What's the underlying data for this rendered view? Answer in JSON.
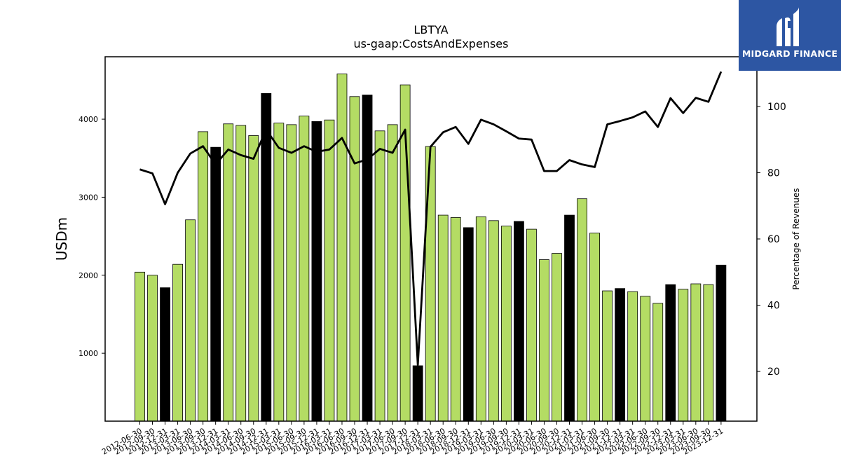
{
  "logo": {
    "text": "MIDGARD FINANCE",
    "icon": "midgard-m-logo-icon",
    "background": "#2d56a3"
  },
  "colors": {
    "bar_regular": "#b4dc64",
    "bar_q4": "#000000",
    "line": "#000000"
  },
  "chart_data": {
    "type": "bar",
    "title": "LBTYA",
    "subtitle": "us-gaap:CostsAndExpenses",
    "ylabel": "USDm",
    "ylabel_right": "Percentage of Revenues",
    "ylim": [
      130,
      4800
    ],
    "ylim_right": [
      5,
      115
    ],
    "yticks": [
      1000,
      2000,
      3000,
      4000
    ],
    "yticks_right": [
      20,
      40,
      60,
      80,
      100
    ],
    "grid": false,
    "categories": [
      "2012-06-30",
      "2012-09-30",
      "2012-12-31",
      "2013-03-31",
      "2013-06-30",
      "2013-09-30",
      "2013-12-31",
      "2014-03-31",
      "2014-06-30",
      "2014-09-30",
      "2014-12-31",
      "2015-03-31",
      "2015-06-30",
      "2015-09-30",
      "2015-12-31",
      "2016-03-31",
      "2016-06-30",
      "2016-09-30",
      "2016-12-31",
      "2017-03-31",
      "2017-06-30",
      "2017-09-30",
      "2017-12-31",
      "2018-03-31",
      "2018-06-30",
      "2018-09-30",
      "2018-12-31",
      "2019-03-31",
      "2019-06-30",
      "2019-09-30",
      "2019-12-31",
      "2020-03-31",
      "2020-06-30",
      "2020-09-30",
      "2020-12-31",
      "2021-03-31",
      "2021-06-30",
      "2021-09-30",
      "2021-12-31",
      "2022-03-31",
      "2022-06-30",
      "2022-09-30",
      "2022-12-31",
      "2023-03-31",
      "2023-06-30",
      "2023-09-30",
      "2023-12-31"
    ],
    "series": [
      {
        "type": "bar",
        "values": [
          2040,
          2000,
          1840,
          2140,
          2710,
          3840,
          3640,
          3940,
          3920,
          3790,
          4330,
          3950,
          3930,
          4040,
          3970,
          3990,
          4580,
          4290,
          4310,
          3850,
          3930,
          4440,
          840,
          3650,
          2770,
          2740,
          2610,
          2750,
          2700,
          2630,
          2690,
          2590,
          2200,
          2280,
          2770,
          2980,
          2540,
          1800,
          1830,
          1790,
          1730,
          1640,
          1880,
          1820,
          1890,
          1880,
          2130
        ],
        "highlight_categories": [
          "2012-12-31",
          "2013-12-31",
          "2014-12-31",
          "2015-12-31",
          "2016-12-31",
          "2017-12-31",
          "2018-12-31",
          "2019-12-31",
          "2020-12-31",
          "2021-12-31",
          "2022-12-31",
          "2023-12-31"
        ]
      },
      {
        "type": "line",
        "axis": "right",
        "values": [
          81,
          79.8,
          70.5,
          80,
          85.8,
          88,
          82.5,
          87,
          85.3,
          84.2,
          93,
          87.5,
          86,
          88,
          86.3,
          87,
          90.5,
          82.8,
          84,
          87.2,
          86,
          93,
          22,
          87.8,
          92.2,
          93.8,
          88.7,
          96,
          94.6,
          92.5,
          90.3,
          90,
          80.5,
          80.5,
          83.8,
          82.5,
          81.7,
          94.6,
          95.6,
          96.7,
          98.5,
          93.8,
          102.5,
          98,
          102.6,
          101.4,
          110.5
        ]
      }
    ]
  }
}
